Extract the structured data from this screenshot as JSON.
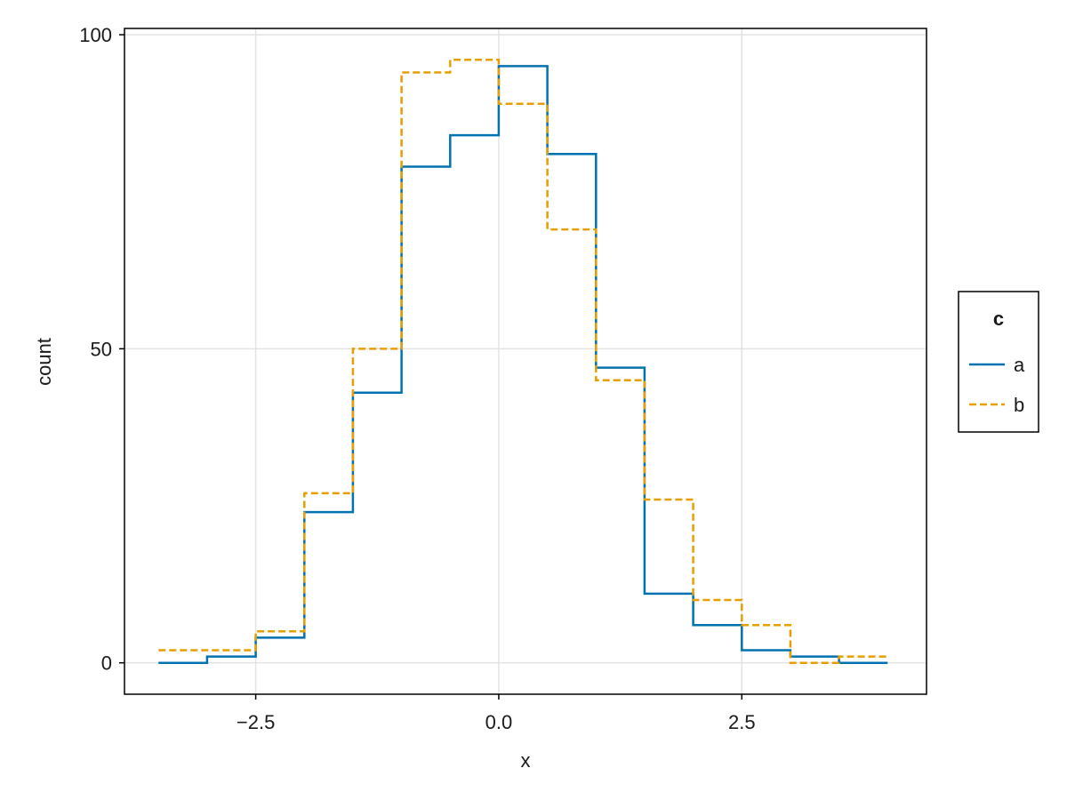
{
  "chart_data": {
    "type": "line",
    "subtype": "step-histogram",
    "xlabel": "x",
    "ylabel": "count",
    "xlim": [
      -3.85,
      4.4
    ],
    "ylim": [
      -5,
      101
    ],
    "x_ticks": [
      -2.5,
      0.0,
      2.5
    ],
    "x_tick_labels": [
      "−2.5",
      "0.0",
      "2.5"
    ],
    "y_ticks": [
      0,
      50,
      100
    ],
    "y_tick_labels": [
      "0",
      "50",
      "100"
    ],
    "grid": true,
    "bin_edges": [
      -3.5,
      -3.0,
      -2.5,
      -2.0,
      -1.5,
      -1.0,
      -0.5,
      0.0,
      0.5,
      1.0,
      1.5,
      2.0,
      2.5,
      3.0,
      3.5,
      4.0
    ],
    "series": [
      {
        "name": "a",
        "color": "#0072b2",
        "dash": "solid",
        "values": [
          0,
          1,
          4,
          24,
          43,
          79,
          84,
          95,
          81,
          47,
          11,
          6,
          2,
          1,
          0
        ]
      },
      {
        "name": "b",
        "color": "#e69f00",
        "dash": "dashed",
        "values": [
          2,
          2,
          5,
          27,
          50,
          94,
          96,
          89,
          69,
          45,
          26,
          10,
          6,
          0,
          1
        ]
      }
    ],
    "legend": {
      "title": "c",
      "position": "right",
      "entries": [
        "a",
        "b"
      ]
    }
  }
}
